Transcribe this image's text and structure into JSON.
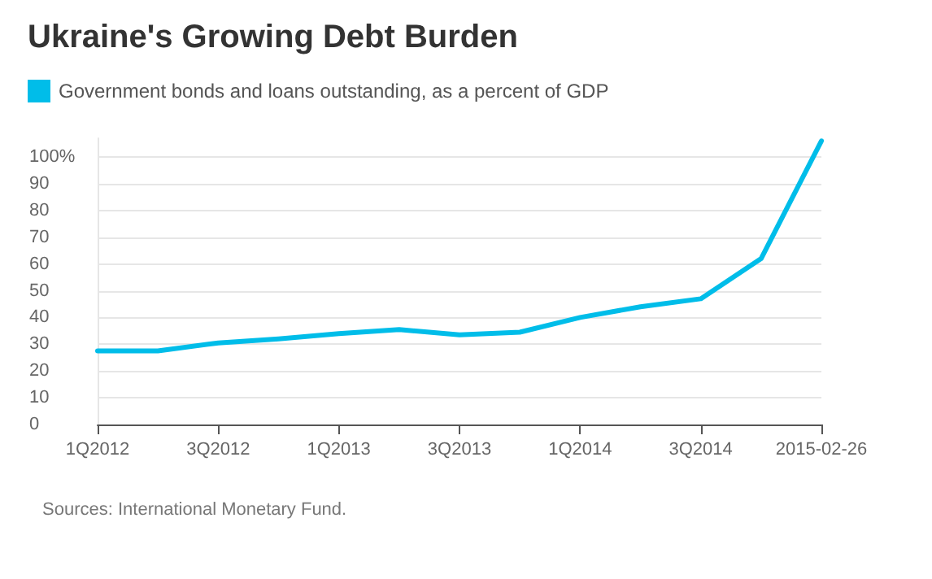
{
  "chart_data": {
    "type": "line",
    "title": "Ukraine's Growing Debt Burden",
    "categories": [
      "1Q2012",
      null,
      "3Q2012",
      null,
      "1Q2013",
      null,
      "3Q2013",
      null,
      "1Q2014",
      null,
      "3Q2014",
      null,
      "2015-02-26"
    ],
    "series": [
      {
        "name": "Government bonds and loans outstanding, as a percent of GDP",
        "color": "#00bde9",
        "values": [
          27.5,
          27.5,
          30.5,
          32,
          34,
          35.5,
          33.5,
          34.5,
          40,
          44,
          47,
          62,
          106
        ]
      }
    ],
    "ylim": [
      0,
      107
    ],
    "yticks": [
      0,
      10,
      20,
      30,
      40,
      50,
      60,
      70,
      80,
      90,
      {
        "value": 100,
        "label": "100%"
      }
    ],
    "grid": "y",
    "legend": "top left",
    "marker": "none",
    "line_style": "solid",
    "annotations": [
      "Sources: International Monetary Fund."
    ]
  }
}
